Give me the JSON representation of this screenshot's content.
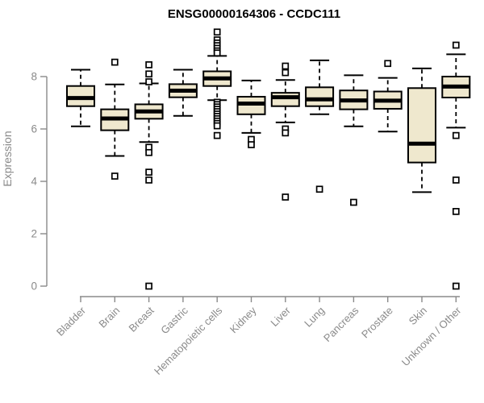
{
  "chart_data": {
    "type": "boxplot",
    "title": "ENSG00000164306 - CCDC111",
    "xlabel": "",
    "ylabel": "Expression",
    "ylim": [
      0,
      8
    ],
    "y_ticks": [
      0,
      2,
      4,
      6,
      8
    ],
    "grid": false,
    "legend": false,
    "categories": [
      "Bladder",
      "Brain",
      "Breast",
      "Gastric",
      "Hematopoietic cells",
      "Kidney",
      "Liver",
      "Lung",
      "Pancreas",
      "Prostate",
      "Skin",
      "Unknown / Other"
    ],
    "series": [
      {
        "name": "Bladder",
        "whisker_low": 6.1,
        "q1": 6.87,
        "median": 7.18,
        "q3": 7.64,
        "whisker_high": 8.26,
        "outliers": []
      },
      {
        "name": "Brain",
        "whisker_low": 4.97,
        "q1": 5.95,
        "median": 6.4,
        "q3": 6.75,
        "whisker_high": 7.7,
        "outliers": [
          8.55,
          4.2
        ]
      },
      {
        "name": "Breast",
        "whisker_low": 5.5,
        "q1": 6.39,
        "median": 6.67,
        "q3": 6.94,
        "whisker_high": 7.74,
        "outliers": [
          8.45,
          8.1,
          7.8,
          5.3,
          5.1,
          4.35,
          4.05,
          0.0
        ]
      },
      {
        "name": "Gastric",
        "whisker_low": 6.5,
        "q1": 7.21,
        "median": 7.46,
        "q3": 7.71,
        "whisker_high": 8.26,
        "outliers": []
      },
      {
        "name": "Hematopoietic cells",
        "whisker_low": 7.1,
        "q1": 7.64,
        "median": 7.93,
        "q3": 8.2,
        "whisker_high": 8.79,
        "outliers": [
          9.7,
          9.4,
          9.28,
          9.18,
          9.08,
          8.98,
          8.9,
          7.02,
          6.93,
          6.84,
          6.75,
          6.66,
          6.57,
          6.48,
          6.39,
          6.3,
          6.21,
          6.12,
          5.75
        ]
      },
      {
        "name": "Kidney",
        "whisker_low": 5.85,
        "q1": 6.56,
        "median": 6.97,
        "q3": 7.23,
        "whisker_high": 7.85,
        "outliers": [
          5.6,
          5.4
        ]
      },
      {
        "name": "Liver",
        "whisker_low": 6.25,
        "q1": 6.87,
        "median": 7.21,
        "q3": 7.38,
        "whisker_high": 7.87,
        "outliers": [
          8.4,
          8.15,
          6.0,
          5.85,
          3.4
        ]
      },
      {
        "name": "Lung",
        "whisker_low": 6.56,
        "q1": 6.87,
        "median": 7.13,
        "q3": 7.59,
        "whisker_high": 8.62,
        "outliers": [
          3.7
        ]
      },
      {
        "name": "Pancreas",
        "whisker_low": 6.1,
        "q1": 6.75,
        "median": 7.09,
        "q3": 7.47,
        "whisker_high": 8.05,
        "outliers": [
          3.2
        ]
      },
      {
        "name": "Prostate",
        "whisker_low": 5.9,
        "q1": 6.77,
        "median": 7.08,
        "q3": 7.43,
        "whisker_high": 7.95,
        "outliers": [
          8.5
        ]
      },
      {
        "name": "Skin",
        "whisker_low": 3.59,
        "q1": 4.72,
        "median": 5.44,
        "q3": 7.56,
        "whisker_high": 8.31,
        "outliers": []
      },
      {
        "name": "Unknown / Other",
        "whisker_low": 6.05,
        "q1": 7.2,
        "median": 7.62,
        "q3": 8.0,
        "whisker_high": 8.85,
        "outliers": [
          9.2,
          5.75,
          4.05,
          2.85,
          0.0
        ]
      }
    ]
  },
  "colors": {
    "background": "#ffffff",
    "box_fill": "#efe8ce",
    "box_border": "#000000",
    "median": "#000000",
    "whisker": "#000000",
    "outlier": "#000000",
    "axis": "#8a8a8a",
    "tick_label": "#8a8a8a",
    "title": "#000000"
  }
}
